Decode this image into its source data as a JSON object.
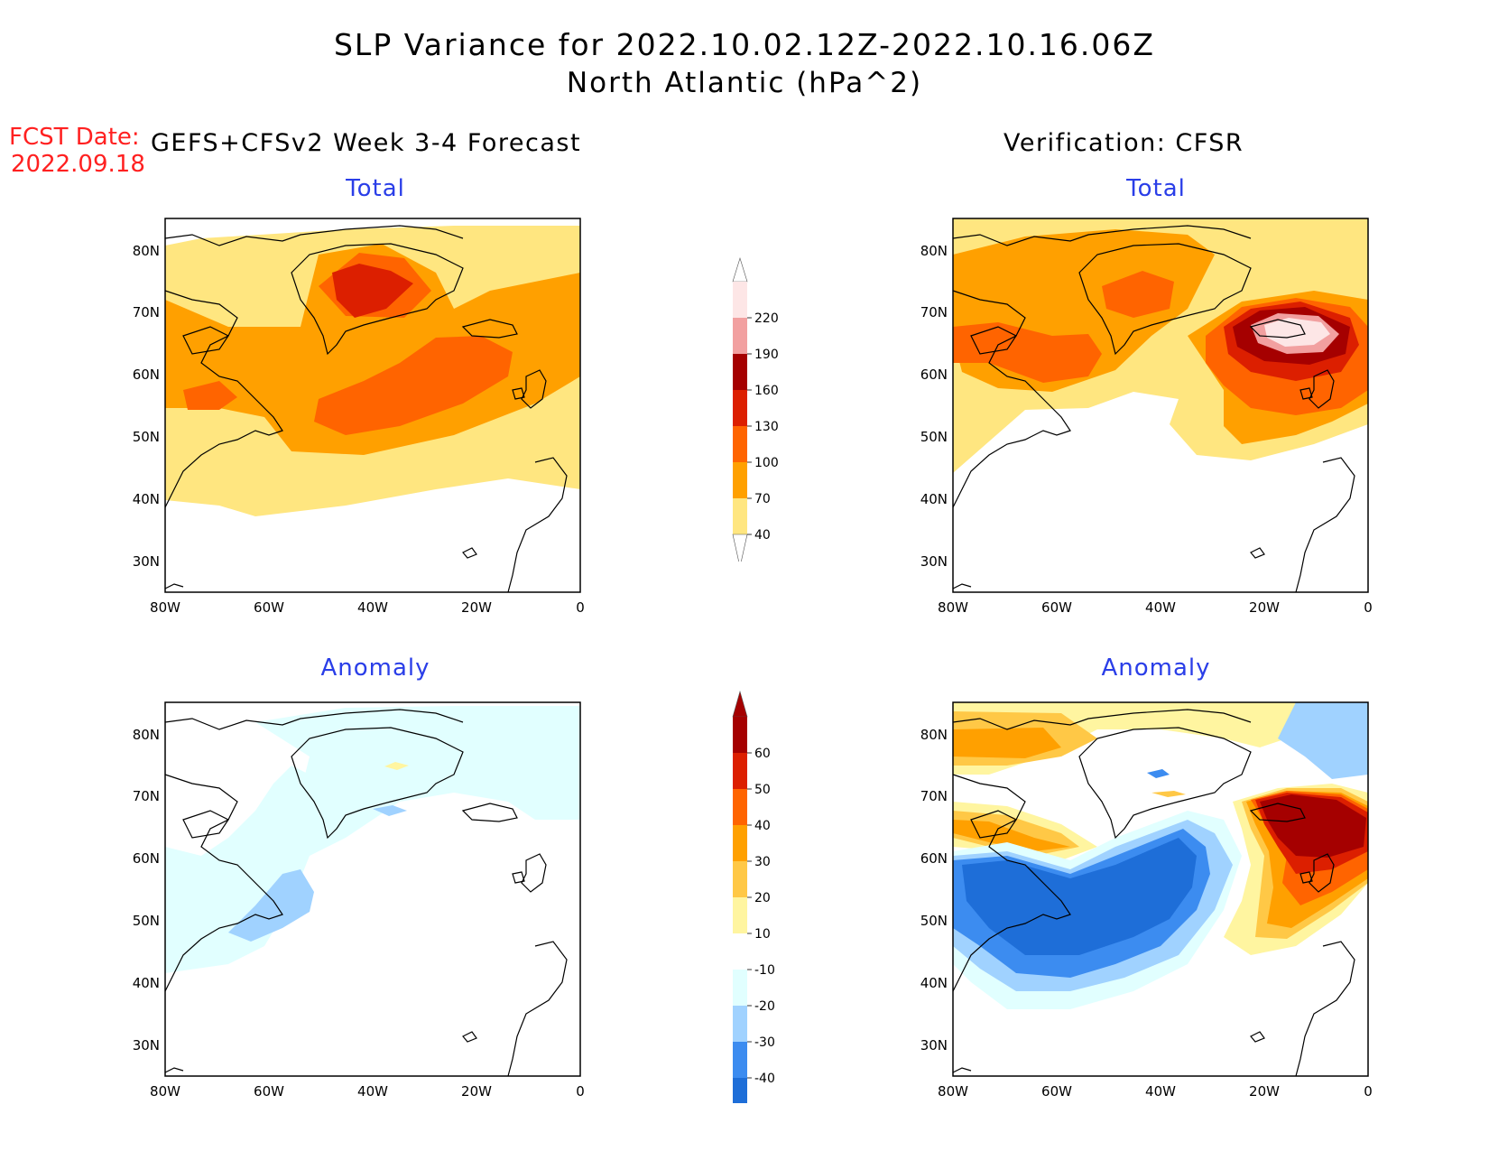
{
  "title": {
    "line1": "SLP Variance for 2022.10.02.12Z-2022.10.16.06Z",
    "line2": "North Atlantic (hPa^2)"
  },
  "forecast_date": {
    "label": "FCST Date:",
    "value": "2022.09.18"
  },
  "left_heading": "GEFS+CFSv2 Week 3-4 Forecast",
  "right_heading": "Verification: CFSR",
  "panels": {
    "fc_total": {
      "title": "Total"
    },
    "ver_total": {
      "title": "Total"
    },
    "fc_anom": {
      "title": "Anomaly"
    },
    "ver_anom": {
      "title": "Anomaly"
    }
  },
  "axes": {
    "lat_labels": [
      "80N",
      "70N",
      "60N",
      "50N",
      "40N",
      "30N"
    ],
    "lon_labels": [
      "80W",
      "60W",
      "40W",
      "20W",
      "0"
    ]
  },
  "colorbars": {
    "total": {
      "labels": [
        "220",
        "190",
        "160",
        "130",
        "100",
        "70",
        "40"
      ],
      "colors": [
        "#fde6e6",
        "#f2a0a0",
        "#a50000",
        "#dc1f00",
        "#ff6400",
        "#ffa000",
        "#ffe680"
      ]
    },
    "anomaly": {
      "labels": [
        "60",
        "50",
        "40",
        "30",
        "20",
        "10",
        "-10",
        "-20",
        "-30",
        "-40"
      ],
      "colors_warm": [
        "#a50000",
        "#dc1f00",
        "#ff6400",
        "#ffa000",
        "#ffc846",
        "#fff5a0"
      ],
      "colors_cool": [
        "#e1ffff",
        "#a0d2ff",
        "#3c8cf0",
        "#1e6ed8"
      ]
    }
  },
  "map_data": {
    "region": "North Atlantic",
    "lon_range": [
      "80W",
      "0"
    ],
    "lat_range": [
      "25N",
      "85N"
    ],
    "fill_colors": {
      "v40": "#ffe680",
      "v70": "#ffa000",
      "v100": "#ff6400",
      "v130": "#dc1f00",
      "v160": "#a50000",
      "v190": "#f2a0a0",
      "v220": "#fde6e6",
      "a10": "#fff5a0",
      "a20": "#ffc846",
      "a30": "#ffa000",
      "a40": "#ff6400",
      "a50": "#dc1f00",
      "a60": "#a50000",
      "am10": "#e1ffff",
      "am20": "#a0d2ff",
      "am30": "#3c8cf0",
      "am40": "#1e6ed8"
    }
  }
}
